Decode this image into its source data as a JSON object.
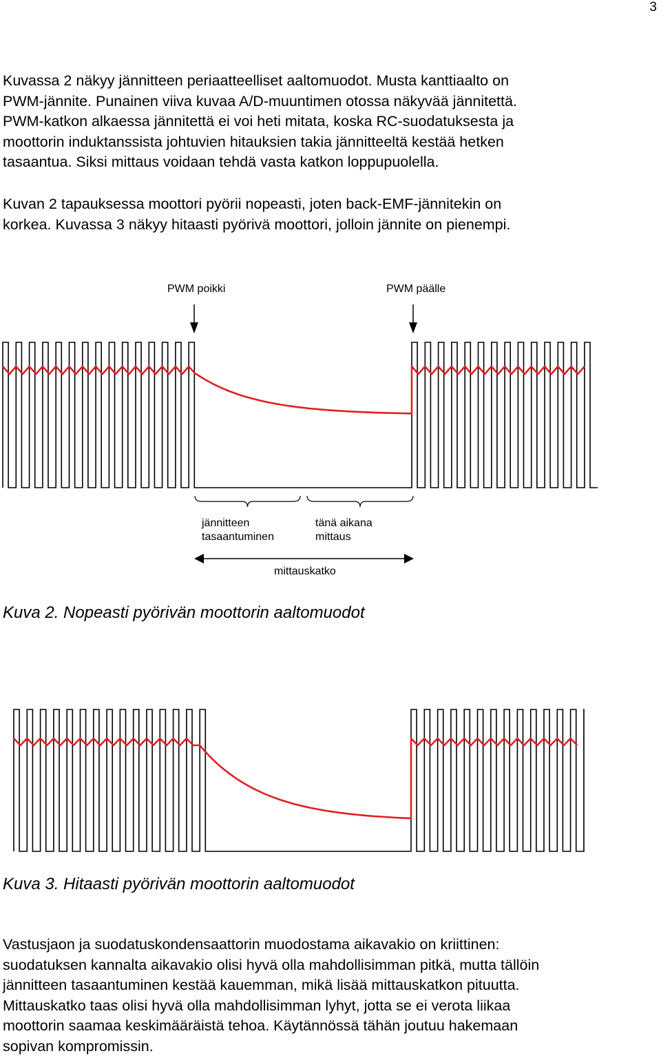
{
  "page_number": "3",
  "paragraph1": [
    "Kuvassa 2 näkyy jännitteen periaatteelliset aaltomuodot. Musta kanttiaalto on",
    "PWM-jännite. Punainen viiva kuvaa A/D-muuntimen otossa näkyvää jännitettä.",
    "PWM-katkon alkaessa jännitettä ei voi heti mitata, koska RC-suodatuksesta ja",
    "moottorin induktanssista johtuvien hitauksien takia jännitteeltä kestää hetken",
    "tasaantua. Siksi mittaus voidaan tehdä vasta katkon loppupuolella."
  ],
  "paragraph2": [
    "Kuvan 2 tapauksessa moottori pyörii nopeasti, joten back-EMF-jännitekin on",
    "korkea. Kuvassa 3 näkyy hitaasti pyörivä moottori, jolloin jännite on pienempi."
  ],
  "figure2": {
    "label_pwm_off": "PWM poikki",
    "label_pwm_on": "PWM päälle",
    "label_settling": [
      "jännitteen",
      "tasaantuminen"
    ],
    "label_measure": [
      "tänä aikana",
      "mittaus"
    ],
    "label_gap": "mittauskatko",
    "caption": "Kuva 2. Nopeasti pyörivän moottorin aaltomuodot",
    "colors": {
      "pwm": "#000000",
      "adc": "#e02020"
    }
  },
  "figure3": {
    "caption": "Kuva 3. Hitaasti pyörivän moottorin aaltomuodot",
    "colors": {
      "pwm": "#000000",
      "adc": "#e02020"
    }
  },
  "paragraph3": [
    "Vastusjaon ja suodatuskondensaattorin muodostama aikavakio on kriittinen:",
    "suodatuksen kannalta aikavakio olisi hyvä olla mahdollisimman pitkä, mutta tällöin",
    "jännitteen tasaantuminen kestää kauemman, mikä lisää mittauskatkon pituutta.",
    "Mittauskatko taas olisi hyvä olla mahdollisimman lyhyt, jotta se ei verota liikaa",
    "moottorin saamaa keskimääräistä tehoa. Käytännössä tähän joutuu hakemaan",
    "sopivan kompromissin."
  ]
}
